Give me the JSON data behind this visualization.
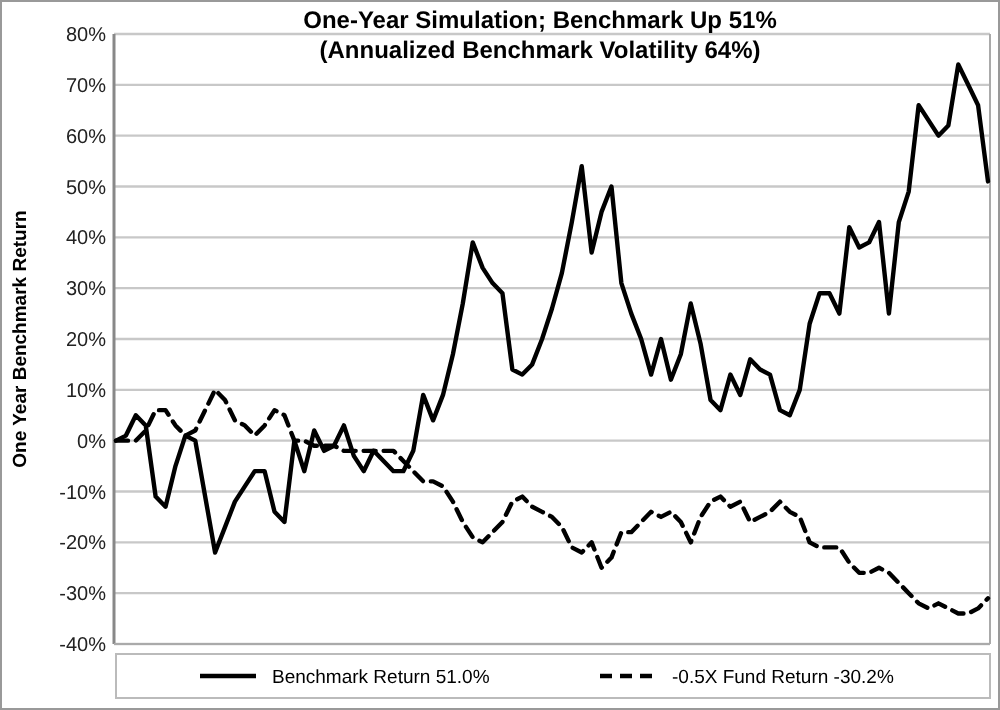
{
  "chart_data": {
    "type": "line",
    "title": "One-Year Simulation; Benchmark Up 51%",
    "subtitle": "(Annualized Benchmark Volatility 64%)",
    "ylabel": "One Year Benchmark Return",
    "categories": [
      null,
      null,
      null,
      null,
      null,
      null,
      null,
      null,
      null,
      null,
      null,
      null,
      null,
      null,
      null,
      null,
      null,
      null,
      null,
      null,
      null,
      null,
      null,
      null,
      null,
      null,
      null,
      null,
      null,
      null,
      null,
      null,
      null,
      null,
      null,
      null,
      null,
      null,
      null,
      null,
      null,
      null,
      null,
      null,
      null,
      null,
      null,
      null,
      null,
      null,
      null,
      null,
      null,
      null,
      null,
      null,
      null,
      null,
      null,
      null,
      null,
      null,
      null,
      null,
      null,
      null,
      null,
      null,
      null,
      null,
      null,
      null,
      null,
      null,
      null,
      null,
      null,
      null,
      null,
      null,
      null,
      null,
      null,
      null,
      null,
      null,
      null,
      null,
      null
    ],
    "series": [
      {
        "name": "Benchmark Return 51.0%",
        "color": "#000000",
        "line_style": "solid",
        "values": [
          0,
          1,
          5,
          3,
          -11,
          -13,
          -5,
          1,
          0,
          -11,
          -22,
          -17,
          -12,
          -9,
          -6,
          -6,
          -14,
          -16,
          0,
          -6,
          2,
          -2,
          -1,
          3,
          -3,
          -6,
          -2,
          -4,
          -6,
          -6,
          -2,
          9,
          4,
          9,
          17,
          27,
          39,
          34,
          31,
          29,
          14,
          13,
          15,
          20,
          26,
          33,
          43,
          54,
          37,
          45,
          50,
          31,
          25,
          20,
          13,
          20,
          12,
          17,
          27,
          19,
          8,
          6,
          13,
          9,
          16,
          14,
          13,
          6,
          5,
          10,
          23,
          29,
          29,
          25,
          42,
          38,
          39,
          43,
          25,
          43,
          49,
          66,
          63,
          60,
          62,
          74,
          70,
          66,
          51
        ]
      },
      {
        "name": "-0.5X Fund Return -30.2%",
        "color": "#000000",
        "line_style": "dashed",
        "values": [
          0,
          0,
          0,
          2,
          6,
          6,
          3,
          1,
          2,
          6,
          10,
          8,
          4,
          3,
          1,
          3,
          6,
          5,
          0,
          0,
          -1,
          -1,
          -1,
          -2,
          -2,
          -2,
          -2,
          -2,
          -2,
          -4,
          -6,
          -8,
          -8,
          -9,
          -12,
          -16,
          -19,
          -20,
          -18,
          -16,
          -12,
          -11,
          -13,
          -14,
          -15,
          -17,
          -21,
          -22,
          -20,
          -25,
          -23,
          -18,
          -18,
          -16,
          -14,
          -15,
          -14,
          -16,
          -20,
          -15,
          -12,
          -11,
          -13,
          -12,
          -16,
          -15,
          -14,
          -12,
          -14,
          -15,
          -20,
          -21,
          -21,
          -21,
          -24,
          -26,
          -26,
          -25,
          -26,
          -28,
          -30,
          -32,
          -33,
          -32,
          -33,
          -34,
          -34,
          -33,
          -31
        ]
      }
    ],
    "ylim": [
      -40,
      80
    ],
    "yticks": [
      {
        "value": -40,
        "label": "-40%"
      },
      {
        "value": -30,
        "label": "-30%"
      },
      {
        "value": -20,
        "label": "-20%"
      },
      {
        "value": -10,
        "label": "-10%"
      },
      {
        "value": 0,
        "label": "0%"
      },
      {
        "value": 10,
        "label": "10%"
      },
      {
        "value": 20,
        "label": "20%"
      },
      {
        "value": 30,
        "label": "30%"
      },
      {
        "value": 40,
        "label": "40%"
      },
      {
        "value": 50,
        "label": "50%"
      },
      {
        "value": 60,
        "label": "60%"
      },
      {
        "value": 70,
        "label": "70%"
      },
      {
        "value": 80,
        "label": "80%"
      }
    ],
    "grid": "y",
    "legend": "bottom",
    "tick_labels": "y"
  }
}
